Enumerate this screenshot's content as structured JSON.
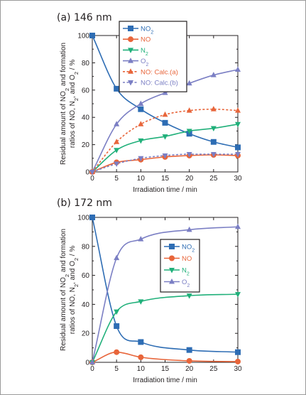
{
  "chart_data": [
    {
      "type": "line",
      "title": "(a) 146 nm",
      "xlabel": "Irradiation time / min",
      "ylabel_line1": "Residual amount of NO₂ and formation",
      "ylabel_line2": "ratios of NO, N₂, and O₂ / %",
      "xlim": [
        0,
        30
      ],
      "ylim": [
        0,
        100
      ],
      "xticks": [
        0,
        5,
        10,
        15,
        20,
        25,
        30
      ],
      "yticks": [
        0,
        20,
        40,
        60,
        80,
        100
      ],
      "legend_position": "top-center",
      "series": [
        {
          "name": "NO₂",
          "color": "#2e6db4",
          "marker": "square",
          "dashed": false,
          "x": [
            0,
            5,
            10,
            15,
            20,
            25,
            30
          ],
          "y": [
            100,
            61,
            46,
            36,
            28,
            22,
            18
          ]
        },
        {
          "name": "NO",
          "color": "#e8653a",
          "marker": "circle",
          "dashed": false,
          "x": [
            0,
            5,
            10,
            15,
            20,
            25,
            30
          ],
          "y": [
            0,
            7,
            9,
            11,
            12,
            12.5,
            12
          ]
        },
        {
          "name": "N₂",
          "color": "#20b07a",
          "marker": "triangle-down",
          "dashed": false,
          "x": [
            0,
            5,
            10,
            15,
            20,
            25,
            30
          ],
          "y": [
            0,
            16,
            23,
            26,
            30,
            32,
            35
          ]
        },
        {
          "name": "O₂",
          "color": "#7b7fc4",
          "marker": "triangle-up",
          "dashed": false,
          "x": [
            0,
            5,
            10,
            15,
            20,
            25,
            30
          ],
          "y": [
            0,
            35,
            50,
            58,
            65,
            71,
            75
          ]
        },
        {
          "name": "NO: Calc.(a)",
          "color": "#e8653a",
          "marker": "triangle-up",
          "dashed": true,
          "x": [
            0,
            5,
            10,
            15,
            20,
            25,
            30
          ],
          "y": [
            0,
            22,
            35,
            42,
            45,
            46,
            45
          ]
        },
        {
          "name": "NO: Calc.(b)",
          "color": "#7b7fc4",
          "marker": "triangle-down",
          "dashed": true,
          "x": [
            0,
            5,
            10,
            15,
            20,
            25,
            30
          ],
          "y": [
            0,
            6,
            10,
            12,
            13,
            13,
            13
          ]
        }
      ]
    },
    {
      "type": "line",
      "title": "(b) 172 nm",
      "xlabel": "Irradiation time / min",
      "ylabel_line1": "Residual amount of NO₂ and formation",
      "ylabel_line2": "ratios of NO, N₂, and O₂ / %",
      "xlim": [
        0,
        30
      ],
      "ylim": [
        0,
        100
      ],
      "xticks": [
        0,
        5,
        10,
        15,
        20,
        25,
        30
      ],
      "yticks": [
        0,
        20,
        40,
        60,
        80,
        100
      ],
      "legend_position": "center-right",
      "series": [
        {
          "name": "NO₂",
          "color": "#2e6db4",
          "marker": "square",
          "dashed": false,
          "x": [
            0,
            5,
            10,
            20,
            30
          ],
          "y": [
            100,
            25,
            14,
            8.5,
            7
          ]
        },
        {
          "name": "NO",
          "color": "#e8653a",
          "marker": "circle",
          "dashed": false,
          "x": [
            0,
            5,
            10,
            20,
            30
          ],
          "y": [
            0,
            7,
            3.5,
            1,
            0.5
          ]
        },
        {
          "name": "N₂",
          "color": "#20b07a",
          "marker": "triangle-down",
          "dashed": false,
          "x": [
            0,
            5,
            10,
            20,
            30
          ],
          "y": [
            0,
            35,
            42,
            46,
            47
          ]
        },
        {
          "name": "O₂",
          "color": "#7b7fc4",
          "marker": "triangle-up",
          "dashed": false,
          "x": [
            0,
            5,
            10,
            20,
            30
          ],
          "y": [
            0,
            72,
            85,
            91.5,
            93.5
          ]
        }
      ]
    }
  ]
}
